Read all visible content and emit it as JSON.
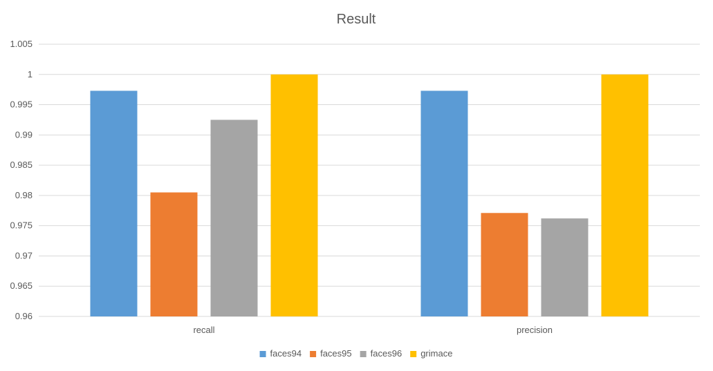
{
  "chart_data": {
    "type": "bar",
    "title": "Result",
    "categories": [
      "recall",
      "precision"
    ],
    "series": [
      {
        "name": "faces94",
        "color": "#5B9BD5",
        "values": [
          0.9973,
          0.9973
        ]
      },
      {
        "name": "faces95",
        "color": "#ED7D31",
        "values": [
          0.9805,
          0.9771
        ]
      },
      {
        "name": "faces96",
        "color": "#A5A5A5",
        "values": [
          0.9925,
          0.9762
        ]
      },
      {
        "name": "grimace",
        "color": "#FFC000",
        "values": [
          1.0,
          1.0
        ]
      }
    ],
    "ylim": [
      0.96,
      1.005
    ],
    "yticks": [
      "0.96",
      "0.965",
      "0.97",
      "0.975",
      "0.98",
      "0.985",
      "0.99",
      "0.995",
      "1",
      "1.005"
    ],
    "grid": true,
    "legend": "bottom"
  }
}
